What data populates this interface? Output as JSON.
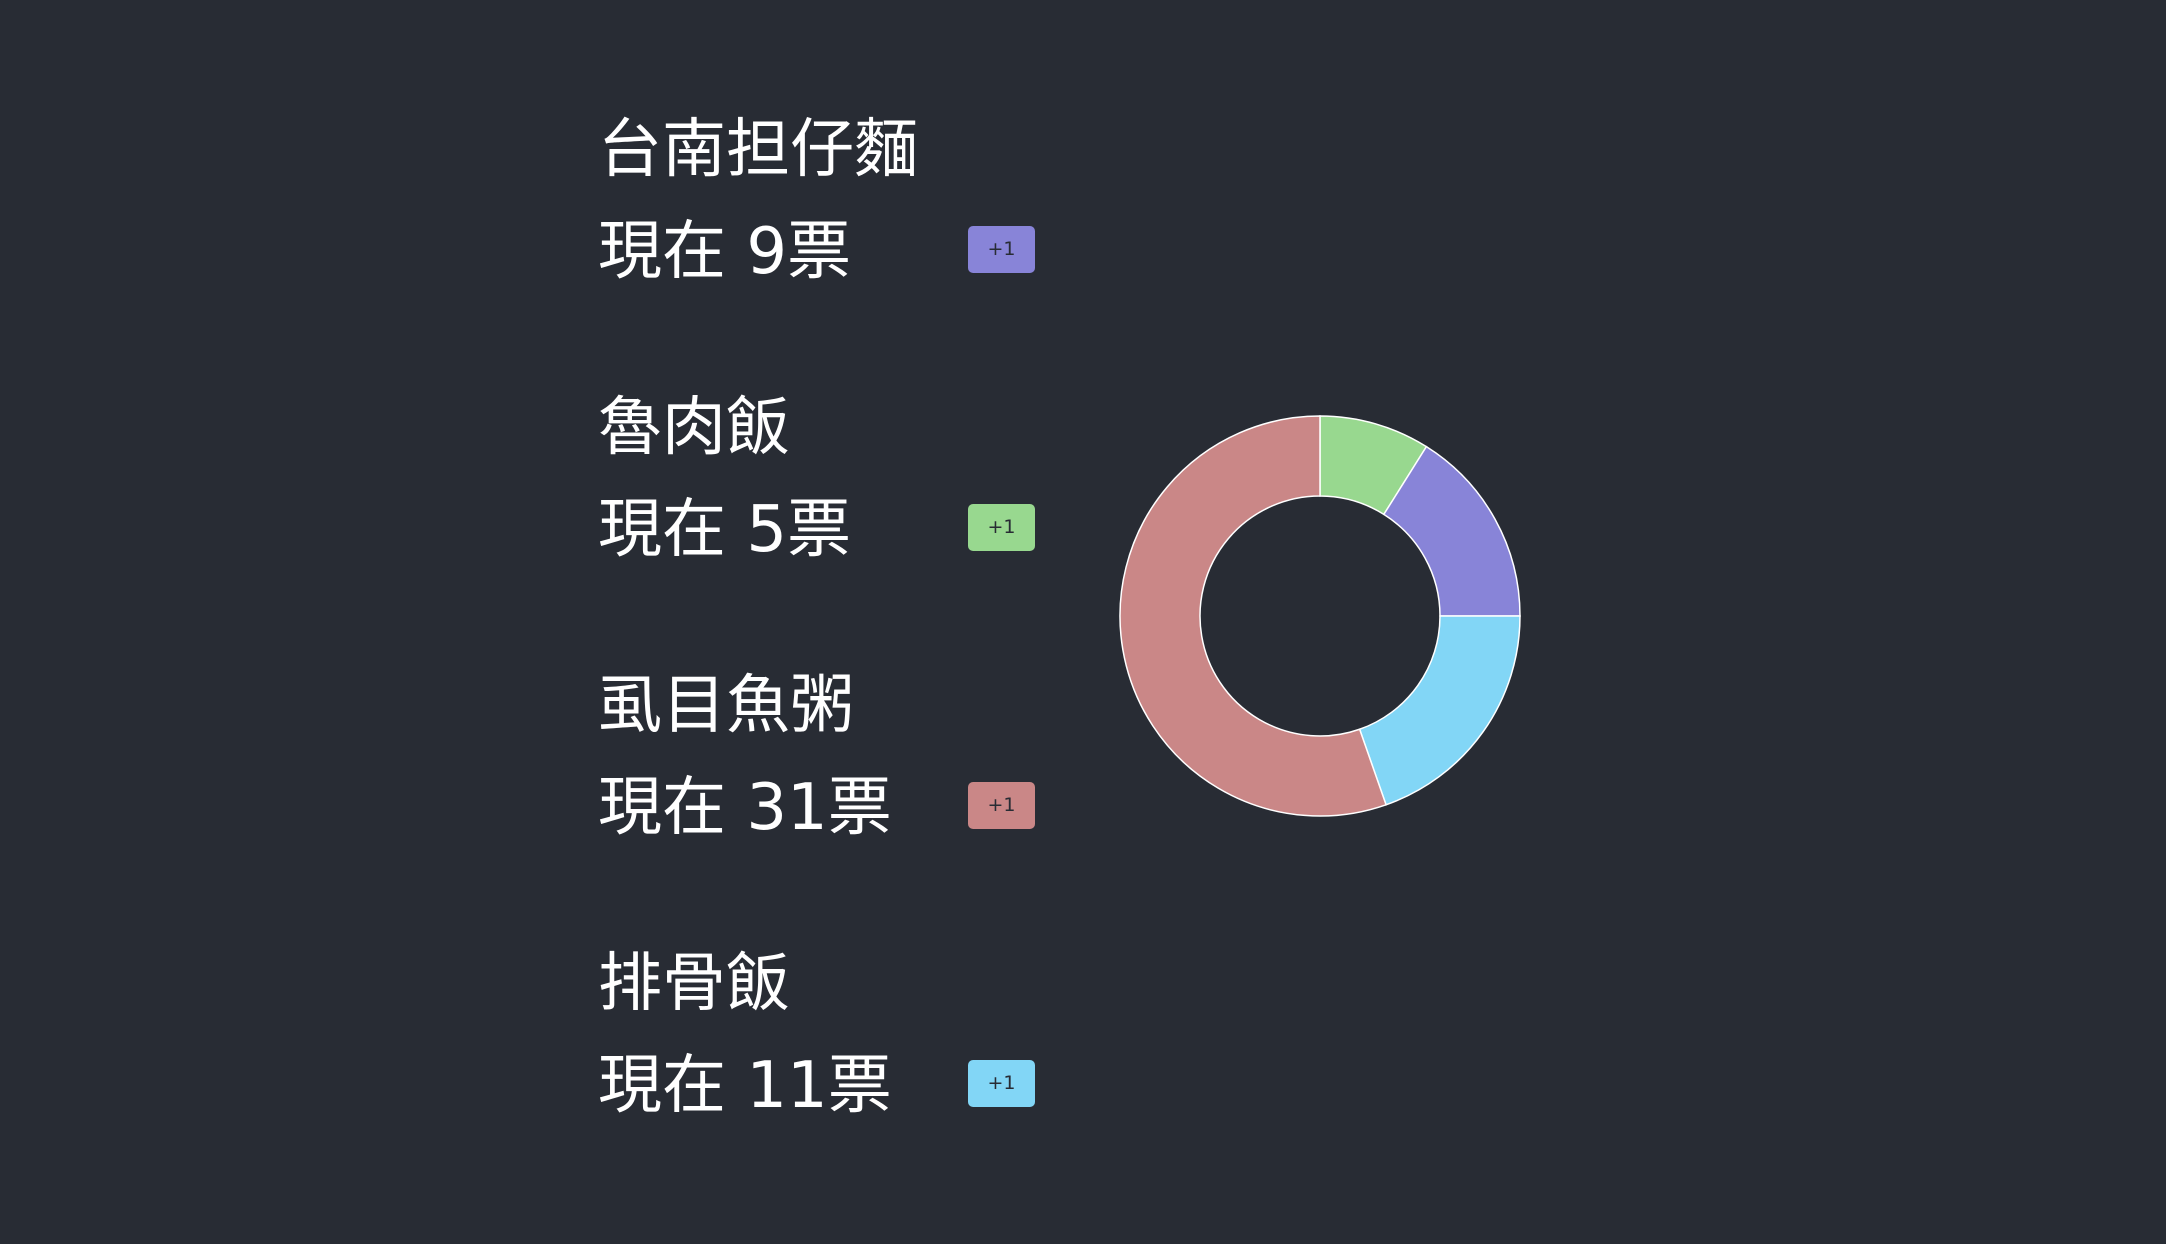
{
  "items": [
    {
      "name": "台南担仔麵",
      "count_text": "現在 9票",
      "button_label": "+1",
      "votes": 9,
      "color": "#8884d8"
    },
    {
      "name": "魯肉飯",
      "count_text": "現在 5票",
      "button_label": "+1",
      "votes": 5,
      "color": "#98d88f"
    },
    {
      "name": "虱目魚粥",
      "count_text": "現在 31票",
      "button_label": "+1",
      "votes": 31,
      "color": "#ca8787"
    },
    {
      "name": "排骨飯",
      "count_text": "現在 11票",
      "button_label": "+1",
      "votes": 11,
      "color": "#82d6f6"
    }
  ],
  "chart_data": {
    "type": "pie",
    "categories": [
      "魯肉飯",
      "台南担仔麵",
      "排骨飯",
      "虱目魚粥"
    ],
    "values": [
      5,
      9,
      11,
      31
    ],
    "colors": [
      "#98d88f",
      "#8884d8",
      "#82d6f6",
      "#ca8787"
    ],
    "donut": true,
    "start": "top",
    "direction": "clockwise",
    "legend": "none"
  }
}
